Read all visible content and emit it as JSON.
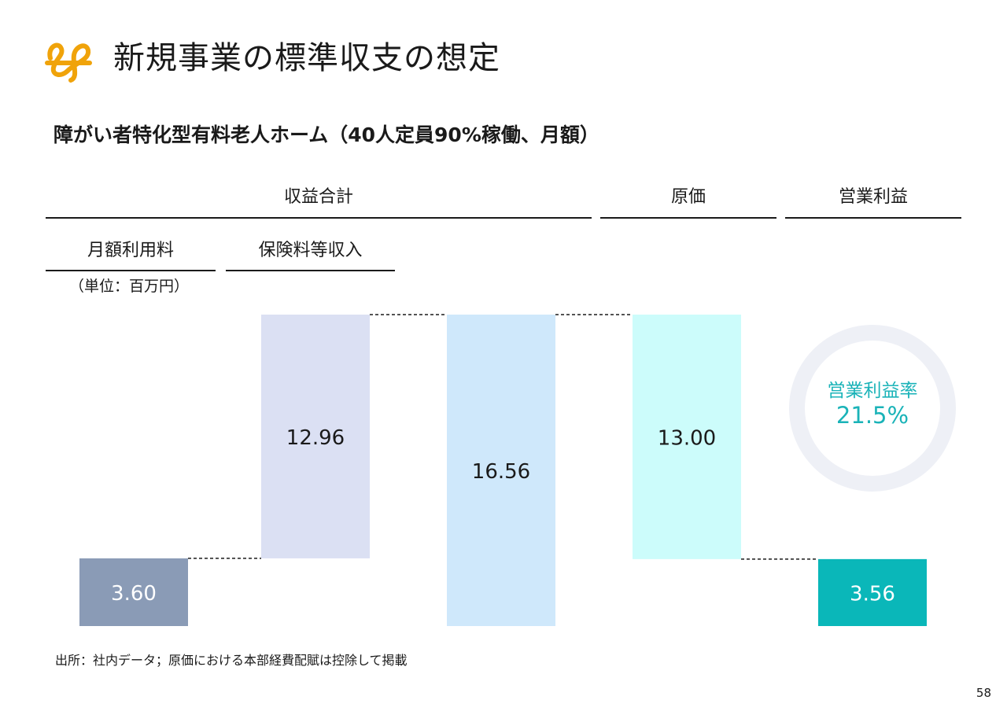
{
  "page": {
    "title": "新規事業の標準収支の想定",
    "subtitle": "障がい者特化型有料老人ホーム（40人定員90%稼働、月額）",
    "unit": "（単位：百万円）",
    "source": "出所：社内データ；原価における本部経費配賦は控除して掲載",
    "page_number": "58"
  },
  "headers": {
    "revenue_total": "収益合計",
    "cost": "原価",
    "operating_profit": "営業利益",
    "monthly_fee": "月額利用料",
    "insurance_income": "保険料等収入"
  },
  "kpi": {
    "label": "営業利益率",
    "value": "21.5%",
    "color": "#1ab3b8"
  },
  "colors": {
    "monthly_fee": "#8a9bb6",
    "insurance": "#dbe0f3",
    "revenue_total": "#cfe8fb",
    "cost": "#ccfcfb",
    "profit": "#0ab7b9",
    "ring": "#eef0f6"
  },
  "chart_data": {
    "type": "bar",
    "subtype": "waterfall",
    "categories": [
      "月額利用料",
      "保険料等収入",
      "収益合計",
      "原価",
      "営業利益"
    ],
    "values": [
      3.6,
      12.96,
      16.56,
      13.0,
      3.56
    ],
    "labels": [
      "3.60",
      "12.96",
      "16.56",
      "13.00",
      "3.56"
    ],
    "bases": [
      0,
      3.6,
      0,
      3.56,
      0
    ],
    "ylim": [
      0,
      16.56
    ],
    "connectors": true
  }
}
